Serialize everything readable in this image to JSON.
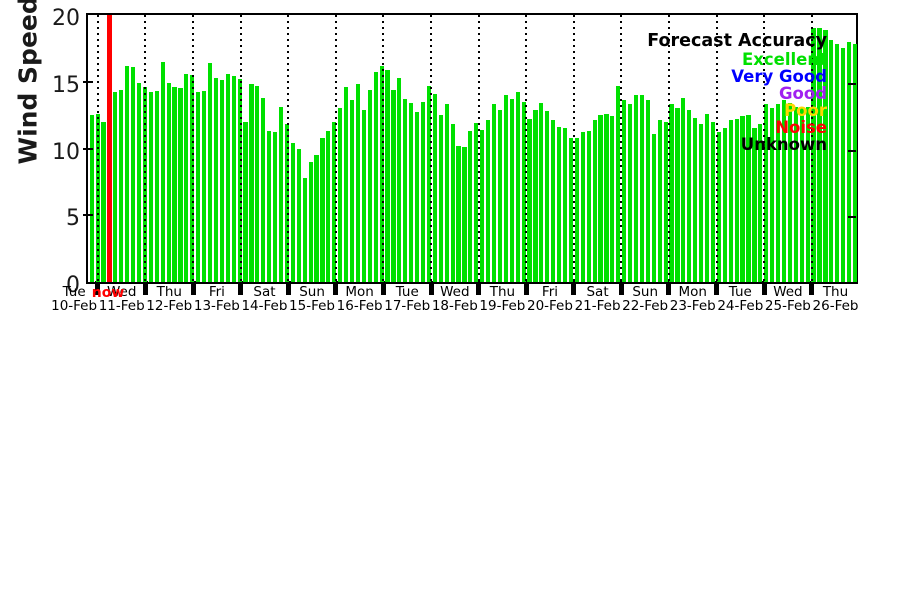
{
  "chart_data": {
    "type": "bar",
    "title": "",
    "ylabel": "Wind Speed, knots",
    "xlabel": "",
    "ylim": [
      0,
      20
    ],
    "yticks": [
      0,
      5,
      10,
      15,
      20
    ],
    "grid": "vertical-dotted-per-day",
    "legend_position": "top-right",
    "bar_color": "#00e000",
    "now_color": "#ff0000",
    "now_label": "now",
    "now_slot": 3,
    "bars_per_day": 8,
    "bar_interval_hours": 3,
    "x_day_labels": [
      {
        "weekday": "Tue",
        "date": "10-Feb"
      },
      {
        "weekday": "Wed",
        "date": "11-Feb"
      },
      {
        "weekday": "Thu",
        "date": "12-Feb"
      },
      {
        "weekday": "Fri",
        "date": "13-Feb"
      },
      {
        "weekday": "Sat",
        "date": "14-Feb"
      },
      {
        "weekday": "Sun",
        "date": "15-Feb"
      },
      {
        "weekday": "Mon",
        "date": "16-Feb"
      },
      {
        "weekday": "Tue",
        "date": "17-Feb"
      },
      {
        "weekday": "Wed",
        "date": "18-Feb"
      },
      {
        "weekday": "Thu",
        "date": "19-Feb"
      },
      {
        "weekday": "Fri",
        "date": "20-Feb"
      },
      {
        "weekday": "Sat",
        "date": "21-Feb"
      },
      {
        "weekday": "Sun",
        "date": "22-Feb"
      },
      {
        "weekday": "Mon",
        "date": "23-Feb"
      },
      {
        "weekday": "Tue",
        "date": "24-Feb"
      },
      {
        "weekday": "Wed",
        "date": "25-Feb"
      },
      {
        "weekday": "Thu",
        "date": "26-Feb"
      }
    ],
    "values_knots": [
      12.5,
      12.6,
      12.0,
      null,
      14.2,
      14.4,
      16.2,
      16.1,
      14.9,
      14.6,
      14.2,
      14.3,
      16.5,
      14.9,
      14.6,
      14.5,
      15.6,
      15.5,
      14.2,
      14.3,
      16.4,
      15.3,
      15.1,
      15.6,
      15.4,
      15.2,
      12.0,
      14.8,
      14.7,
      13.8,
      11.3,
      11.2,
      13.1,
      11.8,
      10.4,
      10.0,
      7.8,
      9.0,
      9.5,
      10.8,
      11.3,
      12.0,
      13.0,
      14.6,
      13.6,
      14.8,
      12.9,
      14.4,
      15.7,
      16.2,
      15.9,
      14.4,
      15.3,
      13.7,
      13.4,
      12.7,
      13.5,
      14.7,
      14.1,
      12.5,
      13.3,
      11.8,
      10.2,
      10.1,
      11.3,
      11.9,
      11.4,
      12.1,
      13.3,
      12.9,
      14.0,
      13.7,
      14.2,
      13.5,
      12.2,
      12.9,
      13.4,
      12.8,
      12.1,
      11.6,
      11.5,
      10.8,
      10.8,
      11.2,
      11.3,
      12.1,
      12.5,
      12.6,
      12.4,
      14.7,
      13.6,
      13.3,
      14.0,
      14.0,
      13.6,
      11.1,
      12.1,
      12.0,
      13.3,
      13.0,
      13.8,
      12.9,
      12.3,
      11.8,
      12.6,
      12.0,
      11.2,
      11.5,
      12.1,
      12.2,
      12.4,
      12.5,
      11.5,
      11.8,
      13.3,
      13.0,
      13.3,
      13.6,
      13.4,
      13.1,
      13.0,
      13.1,
      19.0,
      19.0,
      18.9,
      18.1,
      17.8,
      17.5,
      18.0,
      17.8
    ],
    "legend": {
      "title": "Forecast Accuracy",
      "entries": [
        {
          "label": "Excellent",
          "color": "#00e000"
        },
        {
          "label": "Very Good",
          "color": "#0000ff"
        },
        {
          "label": "Good",
          "color": "#a020f0"
        },
        {
          "label": "Poor",
          "color": "#ffd700"
        },
        {
          "label": "Noise",
          "color": "#ff0000"
        },
        {
          "label": "Unknown",
          "color": "#000000"
        }
      ]
    }
  }
}
